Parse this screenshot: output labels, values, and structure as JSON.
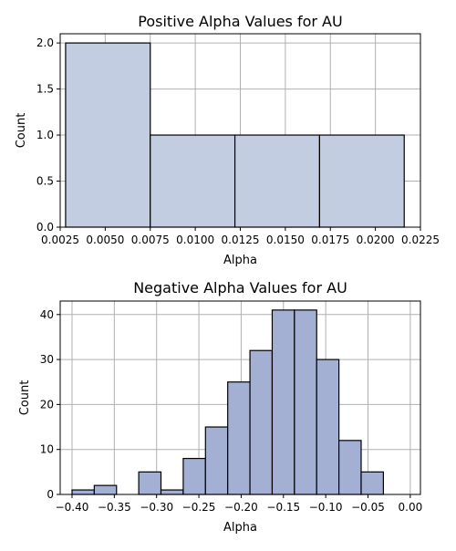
{
  "chart_data": [
    {
      "type": "bar",
      "title": "Positive Alpha Values for AU",
      "xlabel": "Alpha",
      "ylabel": "Count",
      "color": "#c3cde2",
      "grid": true,
      "xlim": [
        0.0025,
        0.0225
      ],
      "ylim": [
        0,
        2.1
      ],
      "x_ticks": [
        0.0025,
        0.005,
        0.0075,
        0.01,
        0.0125,
        0.015,
        0.0175,
        0.02,
        0.0225
      ],
      "x_tick_labels": [
        "0.0025",
        "0.0050",
        "0.0075",
        "0.0100",
        "0.0125",
        "0.0150",
        "0.0175",
        "0.0200",
        "0.0225"
      ],
      "y_ticks": [
        0,
        0.5,
        1,
        1.5,
        2
      ],
      "y_tick_labels": [
        "0.0",
        "0.5",
        "1.0",
        "1.5",
        "2.0"
      ],
      "bins": [
        {
          "x0": 0.0028,
          "x1": 0.0075,
          "count": 2
        },
        {
          "x0": 0.0075,
          "x1": 0.0122,
          "count": 1
        },
        {
          "x0": 0.0122,
          "x1": 0.0169,
          "count": 1
        },
        {
          "x0": 0.0169,
          "x1": 0.0216,
          "count": 1
        }
      ]
    },
    {
      "type": "bar",
      "title": "Negative Alpha Values for AU",
      "xlabel": "Alpha",
      "ylabel": "Count",
      "color": "#a3b0d4",
      "grid": true,
      "xlim": [
        -0.414,
        0.012
      ],
      "ylim": [
        0,
        43
      ],
      "x_ticks": [
        -0.4,
        -0.35,
        -0.3,
        -0.25,
        -0.2,
        -0.15,
        -0.1,
        -0.05,
        0.0
      ],
      "x_tick_labels": [
        "−0.40",
        "−0.35",
        "−0.30",
        "−0.25",
        "−0.20",
        "−0.15",
        "−0.10",
        "−0.05",
        "0.00"
      ],
      "y_ticks": [
        0,
        10,
        20,
        30,
        40
      ],
      "y_tick_labels": [
        "0",
        "10",
        "20",
        "30",
        "40"
      ],
      "bins": [
        {
          "x0": -0.4,
          "x1": -0.3737,
          "count": 1
        },
        {
          "x0": -0.3737,
          "x1": -0.3474,
          "count": 2
        },
        {
          "x0": -0.3474,
          "x1": -0.3211,
          "count": 0
        },
        {
          "x0": -0.3211,
          "x1": -0.2948,
          "count": 5
        },
        {
          "x0": -0.2948,
          "x1": -0.2685,
          "count": 1
        },
        {
          "x0": -0.2685,
          "x1": -0.2422,
          "count": 8
        },
        {
          "x0": -0.2422,
          "x1": -0.2159,
          "count": 15
        },
        {
          "x0": -0.2159,
          "x1": -0.1896,
          "count": 25
        },
        {
          "x0": -0.1896,
          "x1": -0.1633,
          "count": 32
        },
        {
          "x0": -0.1633,
          "x1": -0.137,
          "count": 41
        },
        {
          "x0": -0.137,
          "x1": -0.1107,
          "count": 41
        },
        {
          "x0": -0.1107,
          "x1": -0.0844,
          "count": 30
        },
        {
          "x0": -0.0844,
          "x1": -0.0581,
          "count": 12
        },
        {
          "x0": -0.0581,
          "x1": -0.0318,
          "count": 5
        }
      ]
    }
  ]
}
